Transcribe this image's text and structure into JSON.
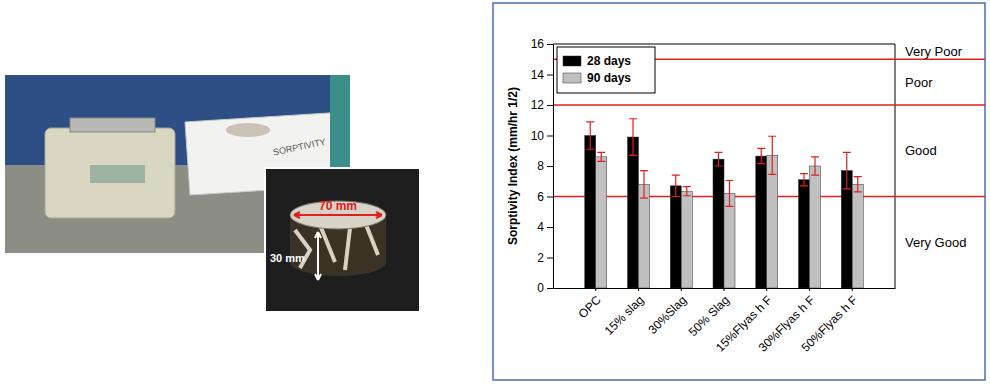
{
  "chart_data": {
    "type": "bar",
    "y_label": "Sorptivity Index (mm/hr 1/2)",
    "categories": [
      "OPC",
      "15% slag",
      "30%Slag",
      "50% Slag",
      "15%Flyas h F",
      "30%Flyas h F",
      "50%Flyas h F"
    ],
    "series": [
      {
        "name": "28 days",
        "color": "#000000",
        "values": [
          10.0,
          9.9,
          6.7,
          8.45,
          8.65,
          7.1,
          7.7
        ],
        "errors": [
          0.9,
          1.2,
          0.7,
          0.45,
          0.5,
          0.4,
          1.2
        ]
      },
      {
        "name": "90 days",
        "color": "#c0c0c0",
        "values": [
          8.6,
          6.8,
          6.35,
          6.2,
          8.7,
          8.0,
          6.8
        ],
        "errors": [
          0.3,
          0.9,
          0.3,
          0.85,
          1.25,
          0.6,
          0.5
        ]
      }
    ],
    "ylim": [
      0,
      16
    ],
    "yticks": [
      0,
      2,
      4,
      6,
      8,
      10,
      12,
      14,
      16
    ],
    "legend": "upper left",
    "thresholds": [
      6,
      12,
      15
    ],
    "zone_labels": [
      "Very Good",
      "Good",
      "Poor",
      "Very Poor"
    ]
  },
  "photo": {
    "tray_label": "SORPTIVITY",
    "diameter_label": "70 mm",
    "height_label": "30 mm"
  }
}
